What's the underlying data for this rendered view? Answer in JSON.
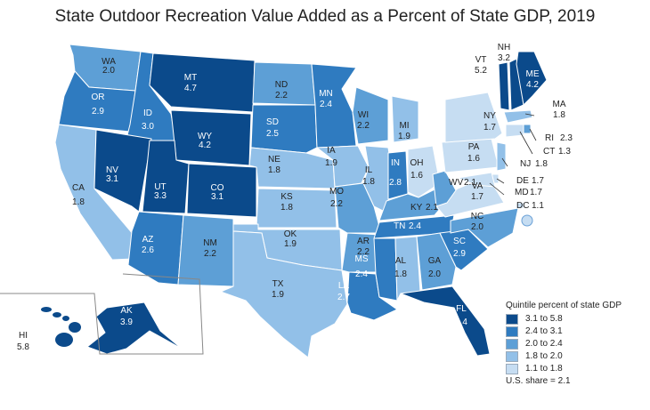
{
  "title": "State Outdoor Recreation Value Added as a Percent of State GDP, 2019",
  "legend": {
    "title": "Quintile percent of state GDP",
    "items": [
      {
        "label": "3.1 to 5.8",
        "color": "#0b4a8b"
      },
      {
        "label": "2.4 to 3.1",
        "color": "#2f7bc0"
      },
      {
        "label": "2.0 to 2.4",
        "color": "#5d9fd6"
      },
      {
        "label": "1.8 to 2.0",
        "color": "#92c0e8"
      },
      {
        "label": "1.1 to 1.8",
        "color": "#c6ddf2"
      }
    ],
    "us_share": "U.S. share = 2.1"
  },
  "states": [
    {
      "abbr": "WA",
      "value": "2.0"
    },
    {
      "abbr": "OR",
      "value": "2.9"
    },
    {
      "abbr": "CA",
      "value": "1.8"
    },
    {
      "abbr": "ID",
      "value": "3.0"
    },
    {
      "abbr": "NV",
      "value": "3.1"
    },
    {
      "abbr": "MT",
      "value": "4.7"
    },
    {
      "abbr": "WY",
      "value": "4.2"
    },
    {
      "abbr": "UT",
      "value": "3.3"
    },
    {
      "abbr": "CO",
      "value": "3.1"
    },
    {
      "abbr": "AZ",
      "value": "2.6"
    },
    {
      "abbr": "NM",
      "value": "2.2"
    },
    {
      "abbr": "ND",
      "value": "2.2"
    },
    {
      "abbr": "SD",
      "value": "2.5"
    },
    {
      "abbr": "NE",
      "value": "1.8"
    },
    {
      "abbr": "KS",
      "value": "1.8"
    },
    {
      "abbr": "OK",
      "value": "1.9"
    },
    {
      "abbr": "TX",
      "value": "1.9"
    },
    {
      "abbr": "MN",
      "value": "2.4"
    },
    {
      "abbr": "IA",
      "value": "1.9"
    },
    {
      "abbr": "MO",
      "value": "2.2"
    },
    {
      "abbr": "AR",
      "value": "2.2"
    },
    {
      "abbr": "LA",
      "value": "2.7"
    },
    {
      "abbr": "WI",
      "value": "2.2"
    },
    {
      "abbr": "IL",
      "value": "1.8"
    },
    {
      "abbr": "MI",
      "value": "1.9"
    },
    {
      "abbr": "IN",
      "value": "2.8"
    },
    {
      "abbr": "OH",
      "value": "1.6"
    },
    {
      "abbr": "KY",
      "value": "2.1"
    },
    {
      "abbr": "TN",
      "value": "2.4"
    },
    {
      "abbr": "MS",
      "value": "2.4"
    },
    {
      "abbr": "AL",
      "value": "1.8"
    },
    {
      "abbr": "GA",
      "value": "2.0"
    },
    {
      "abbr": "FL",
      "value": "4.4"
    },
    {
      "abbr": "SC",
      "value": "2.9"
    },
    {
      "abbr": "NC",
      "value": "2.0"
    },
    {
      "abbr": "VA",
      "value": "1.7"
    },
    {
      "abbr": "WV",
      "value": "2.1"
    },
    {
      "abbr": "PA",
      "value": "1.6"
    },
    {
      "abbr": "NY",
      "value": "1.7"
    },
    {
      "abbr": "VT",
      "value": "5.2"
    },
    {
      "abbr": "NH",
      "value": "3.2"
    },
    {
      "abbr": "ME",
      "value": "4.2"
    },
    {
      "abbr": "MA",
      "value": "1.8"
    },
    {
      "abbr": "RI",
      "value": "2.3"
    },
    {
      "abbr": "CT",
      "value": "1.3"
    },
    {
      "abbr": "NJ",
      "value": "1.8"
    },
    {
      "abbr": "DE",
      "value": "1.7"
    },
    {
      "abbr": "MD",
      "value": "1.7"
    },
    {
      "abbr": "DC",
      "value": "1.1"
    },
    {
      "abbr": "AK",
      "value": "3.9"
    },
    {
      "abbr": "HI",
      "value": "5.8"
    }
  ]
}
